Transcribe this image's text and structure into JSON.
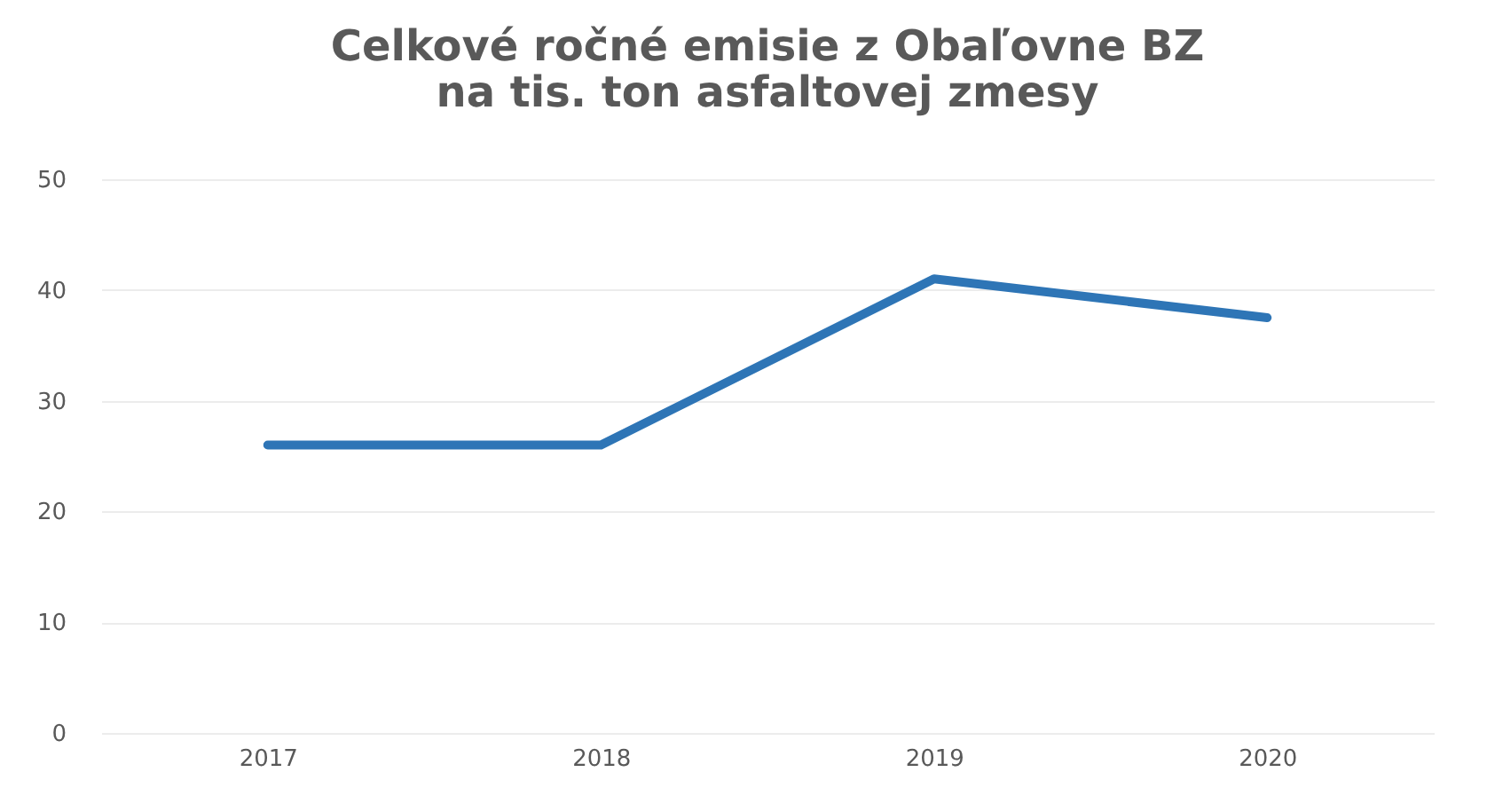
{
  "chart_data": {
    "type": "line",
    "title": "Celkové ročné emisie z Obaľovne BZ\nna tis. ton asfaltovej zmesy",
    "categories": [
      "2017",
      "2018",
      "2019",
      "2020"
    ],
    "series": [
      {
        "color": "#2e75b6",
        "values": [
          26,
          26,
          41,
          37.5
        ]
      }
    ],
    "ylim": [
      0,
      50
    ],
    "yticks": [
      0,
      10,
      20,
      30,
      40,
      50
    ],
    "grid": "y",
    "legend": false,
    "marker": "none",
    "line_style": "solid"
  }
}
